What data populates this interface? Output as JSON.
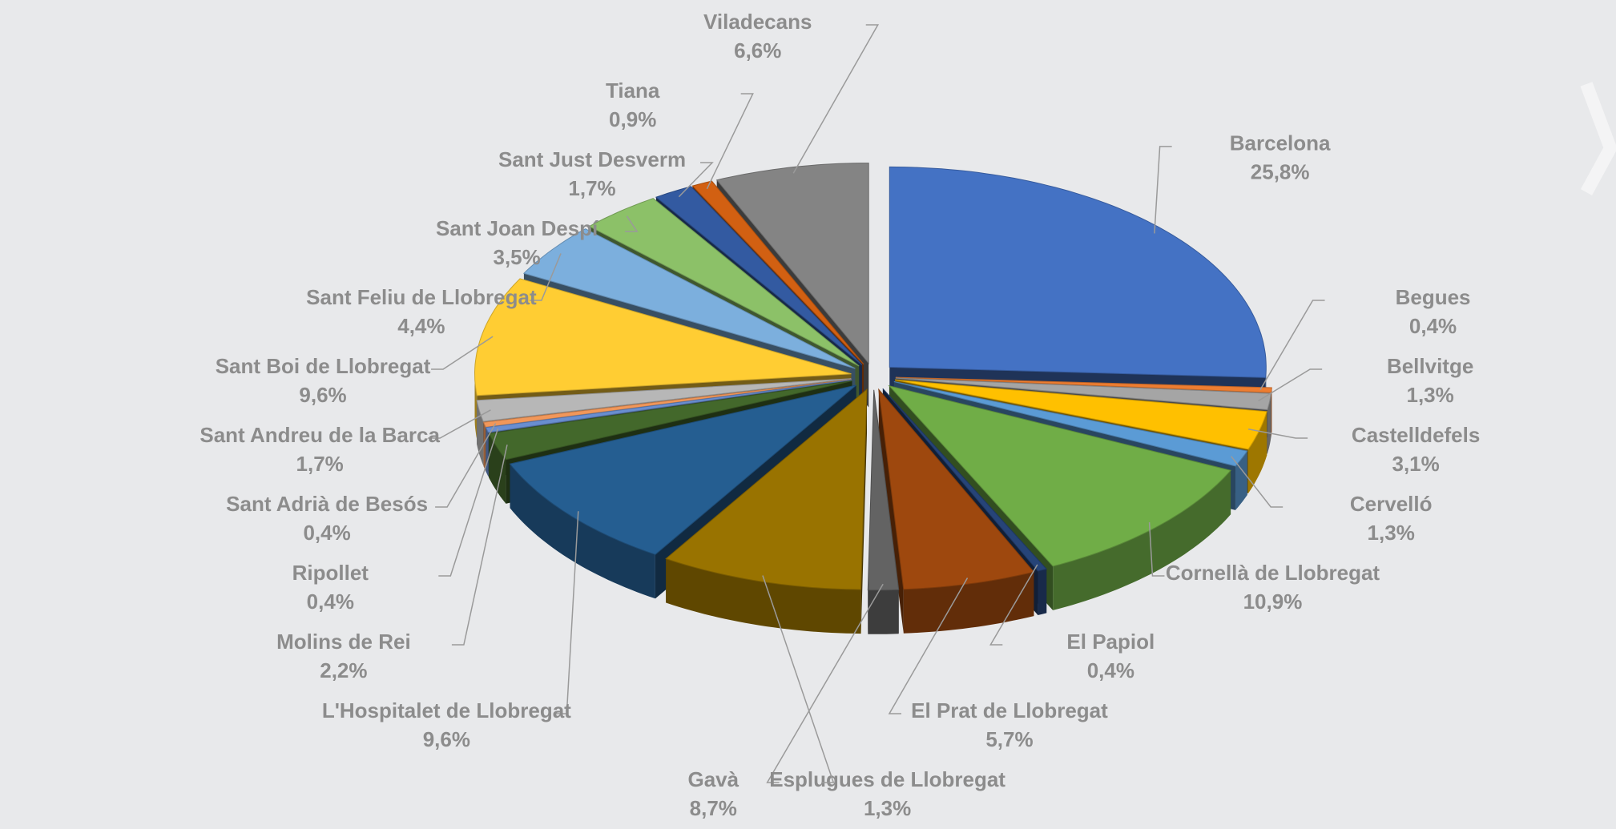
{
  "chart_data": {
    "type": "pie",
    "categories": [
      "Barcelona",
      "Begues",
      "Bellvitge",
      "Castelldefels",
      "Cervelló",
      "Cornellà de Llobregat",
      "El Papiol",
      "El Prat de Llobregat",
      "Esplugues de Llobregat",
      "Gavà",
      "L'Hospitalet de Llobregat",
      "Molins de Rei",
      "Ripollet",
      "Sant Adrià de Besós",
      "Sant Andreu de la Barca",
      "Sant Boi de Llobregat",
      "Sant Feliu de Llobregat",
      "Sant Joan Despí",
      "Sant Just Desverm",
      "Tiana",
      "Viladecans"
    ],
    "values": [
      25.8,
      0.4,
      1.3,
      3.1,
      1.3,
      10.9,
      0.4,
      5.7,
      1.3,
      8.7,
      9.6,
      2.2,
      0.4,
      0.4,
      1.7,
      9.6,
      4.4,
      3.5,
      1.7,
      0.9,
      6.6
    ],
    "value_labels": [
      "25,8%",
      "0,4%",
      "1,3%",
      "3,1%",
      "1,3%",
      "10,9%",
      "0,4%",
      "5,7%",
      "1,3%",
      "8,7%",
      "9,6%",
      "2,2%",
      "0,4%",
      "0,4%",
      "1,7%",
      "9,6%",
      "4,4%",
      "3,5%",
      "1,7%",
      "0,9%",
      "6,6%"
    ],
    "colors": [
      "#4472c4",
      "#ed7d31",
      "#a5a5a5",
      "#ffc000",
      "#5b9bd5",
      "#70ad47",
      "#264478",
      "#9e480e",
      "#636363",
      "#997300",
      "#255e91",
      "#43682b",
      "#698ed0",
      "#f1975a",
      "#b7b7b7",
      "#ffcd33",
      "#7cafdd",
      "#8cc168",
      "#335aa1",
      "#d26012",
      "#848484"
    ]
  }
}
